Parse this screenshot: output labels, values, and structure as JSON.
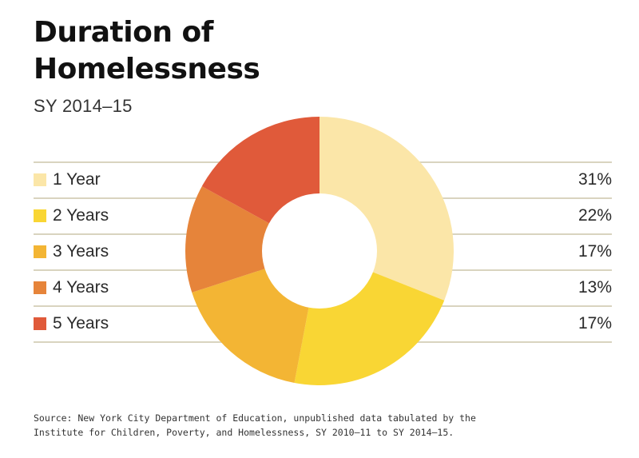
{
  "title_line1": "Duration of",
  "title_line2": "Homelessness",
  "subtitle": "SY 2014–15",
  "source_line1": "Source: New York City Department of Education, unpublished data tabulated by the",
  "source_line2": "Institute for Children, Poverty, and Homelessness, SY 2010–11 to SY 2014–15.",
  "chart_data": {
    "type": "pie",
    "style": "donut",
    "title": "Duration of Homelessness",
    "subtitle": "SY 2014–15",
    "categories": [
      "1 Year",
      "2 Years",
      "3 Years",
      "4 Years",
      "5 Years"
    ],
    "values": [
      31,
      22,
      17,
      13,
      17
    ],
    "value_labels": [
      "31%",
      "22%",
      "17%",
      "13%",
      "17%"
    ],
    "unit": "%",
    "colors": [
      "#fbe6a8",
      "#f9d634",
      "#f3b534",
      "#e6843a",
      "#e05a3a"
    ],
    "start_direction": "top",
    "direction": "clockwise",
    "legend_placement": "left rows with values at right"
  }
}
